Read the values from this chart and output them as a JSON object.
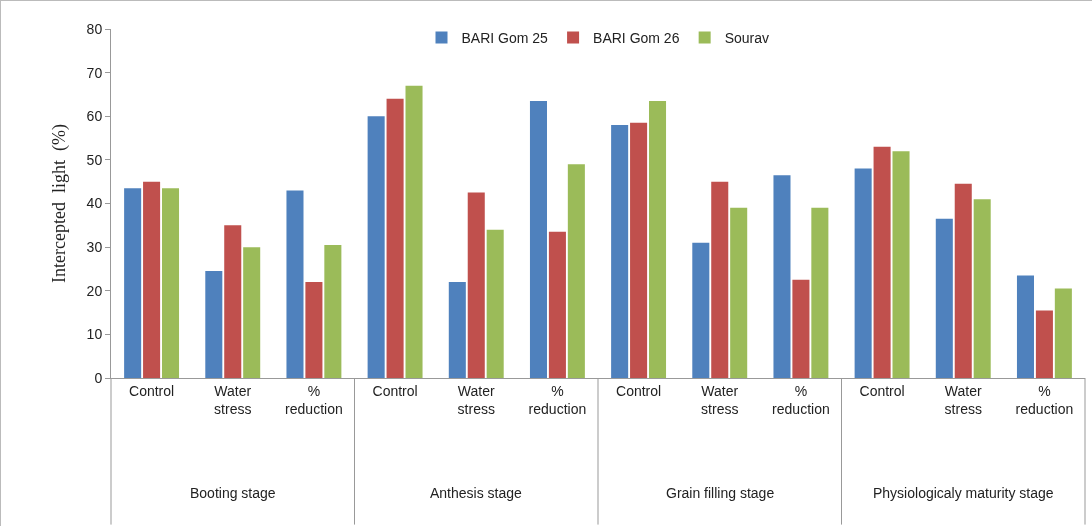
{
  "chart_data": {
    "type": "bar",
    "ylabel": "Intercepted  light  (%)",
    "categories": [
      "Control",
      "Water stress",
      "% reduction",
      "Control",
      "Water stress",
      "% reduction",
      "Control",
      "Water stress",
      "% reduction",
      "Control",
      "Water stress",
      "% reduction"
    ],
    "series": [
      {
        "name": "BARI Gom 25",
        "color": "#4f81bd",
        "values": [
          43.5,
          24.5,
          43,
          60,
          22,
          63.5,
          58,
          31,
          46.5,
          48,
          36.5,
          23.5
        ]
      },
      {
        "name": "BARI Gom 26",
        "color": "#c0504d",
        "values": [
          45,
          35,
          22,
          64,
          42.5,
          33.5,
          58.5,
          45,
          22.5,
          53,
          44.5,
          15.5
        ]
      },
      {
        "name": "Sourav",
        "color": "#9bbb59",
        "values": [
          43.5,
          30,
          30.5,
          67,
          34,
          49,
          63.5,
          39,
          39,
          52,
          41,
          20.5
        ]
      }
    ],
    "annotations": [
      "Booting stage",
      "Anthesis stage",
      "Grain filling stage",
      "Physiologicaly maturity stage"
    ],
    "ylim": [
      0,
      80
    ],
    "yticks": [
      0,
      10,
      20,
      30,
      40,
      50,
      60,
      70,
      80
    ],
    "grid": false,
    "legend": "top"
  }
}
